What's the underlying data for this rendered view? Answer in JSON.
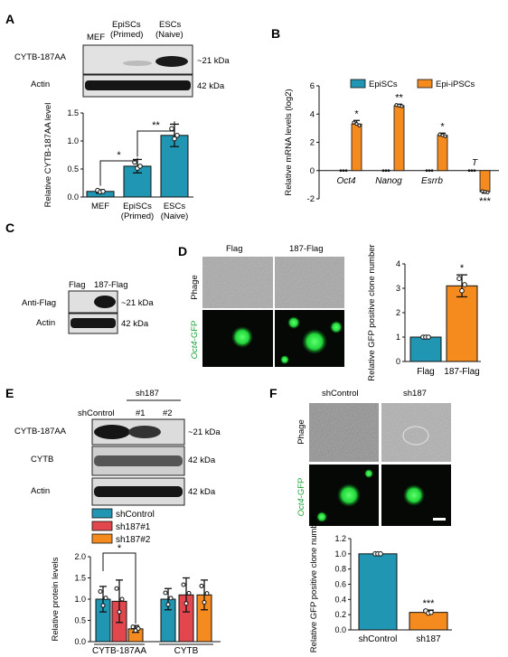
{
  "panel_letters": [
    "A",
    "B",
    "C",
    "D",
    "E",
    "F"
  ],
  "colors": {
    "teal": "#2196b3",
    "orange": "#f58a1f",
    "red": "#e2474d",
    "blot_bg": "#d9d9d9",
    "band": "#1a1a1a",
    "gfp": "#27e24b"
  },
  "panelA": {
    "lane_labels": [
      "MEF",
      "EpiSCs\n(Primed)",
      "ESCs\n(Naive)"
    ],
    "rows": [
      {
        "label": "CYTB-187AA",
        "size": "~21 kDa"
      },
      {
        "label": "Actin",
        "size": "42 kDa"
      }
    ],
    "chart_data": {
      "type": "bar",
      "categories": [
        "MEF",
        "EpiSCs\n(Primed)",
        "ESCs\n(Naive)"
      ],
      "values": [
        0.1,
        0.55,
        1.1
      ],
      "errors": [
        0.03,
        0.12,
        0.2
      ],
      "ylabel": "Relative CYTB-187AA level",
      "ylim": [
        0,
        1.5
      ],
      "yticks": [
        "0.0",
        "0.5",
        "1.0",
        "1.5"
      ],
      "significance": [
        "*",
        "**"
      ]
    }
  },
  "panelB": {
    "chart_data": {
      "type": "bar",
      "categories": [
        "Oct4",
        "Nanog",
        "Esrrb",
        "T"
      ],
      "series": [
        {
          "name": "EpiSCs",
          "values": [
            0,
            0,
            0,
            0
          ]
        },
        {
          "name": "Epi-iPSCs",
          "values": [
            3.3,
            4.6,
            2.5,
            -1.5
          ]
        }
      ],
      "errors": [
        0.25,
        0.1,
        0.15,
        0.1
      ],
      "significance": [
        "*",
        "**",
        "*",
        "***"
      ],
      "ylabel": "Relative mRNA levels (log2)",
      "ylim": [
        -2,
        6
      ],
      "yticks": [
        "-2",
        "0",
        "2",
        "4",
        "6"
      ]
    }
  },
  "panelC": {
    "lane_labels": [
      "Flag",
      "187-Flag"
    ],
    "rows": [
      {
        "label": "Anti-Flag",
        "size": "~21 kDa"
      },
      {
        "label": "Actin",
        "size": "42 kDa"
      }
    ]
  },
  "panelD": {
    "col_labels": [
      "Flag",
      "187-Flag"
    ],
    "row_labels": [
      "Phage",
      "Oct4-GFP"
    ],
    "chart_data": {
      "type": "bar",
      "categories": [
        "Flag",
        "187-Flag"
      ],
      "values": [
        1,
        3.1
      ],
      "errors": [
        0,
        0.45
      ],
      "significance": [
        "*"
      ],
      "ylabel": "Relative GFP positive clone number",
      "ylim": [
        0,
        4
      ],
      "yticks": [
        "0",
        "1",
        "2",
        "3",
        "4"
      ]
    }
  },
  "panelE": {
    "lane_labels": [
      "shControl",
      "#1",
      "#2"
    ],
    "group_label": "sh187",
    "rows": [
      {
        "label": "CYTB-187AA",
        "size": "~21 kDa"
      },
      {
        "label": "CYTB",
        "size": "42 kDa"
      },
      {
        "label": "Actin",
        "size": "42 kDa"
      }
    ],
    "chart_data": {
      "type": "bar",
      "categories": [
        "CYTB-187AA",
        "CYTB"
      ],
      "series": [
        {
          "name": "shControl",
          "values": [
            1.0,
            1.0
          ]
        },
        {
          "name": "sh187#1",
          "values": [
            0.95,
            1.1
          ]
        },
        {
          "name": "sh187#2",
          "values": [
            0.3,
            1.1
          ]
        }
      ],
      "errors": [
        [
          0.3,
          0.25
        ],
        [
          0.5,
          0.4
        ],
        [
          0.08,
          0.35
        ]
      ],
      "significance": [
        "*"
      ],
      "ylabel": "Relative protein levels",
      "ylim": [
        0,
        2.0
      ],
      "yticks": [
        "0.0",
        "0.5",
        "1.0",
        "1.5",
        "2.0"
      ]
    }
  },
  "panelF": {
    "col_labels": [
      "shControl",
      "sh187"
    ],
    "row_labels": [
      "Phage",
      "Oct4-GFP"
    ],
    "chart_data": {
      "type": "bar",
      "categories": [
        "shControl",
        "sh187"
      ],
      "values": [
        1.0,
        0.23
      ],
      "errors": [
        0,
        0.03
      ],
      "significance": [
        "***"
      ],
      "ylabel": "Relative GFP positive clone number",
      "ylim": [
        0,
        1.2
      ],
      "yticks": [
        "0.0",
        "0.2",
        "0.4",
        "0.6",
        "0.8",
        "1.0",
        "1.2"
      ]
    }
  }
}
